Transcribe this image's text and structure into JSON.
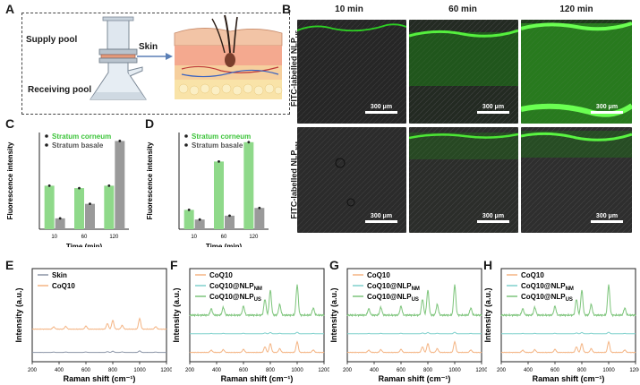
{
  "panels": {
    "A": {
      "label": "A",
      "supply": "Supply pool",
      "receiving": "Receiving pool",
      "skin": "Skin"
    },
    "B": {
      "label": "B",
      "times": [
        "10 min",
        "60 min",
        "120 min"
      ],
      "rows": [
        {
          "label_main": "FITC-labelled NLP",
          "label_sub": "US"
        },
        {
          "label_main": "FITC-labelled NLP",
          "label_sub": "NM"
        }
      ],
      "scalebar": "300 μm",
      "colors": {
        "fitc": "#3ddc2a",
        "tissue": "#2a2a2a"
      }
    }
  },
  "chart_data": [
    {
      "panel": "C",
      "type": "bar",
      "categories": [
        "10",
        "60",
        "120"
      ],
      "xlabel": "Time (min)",
      "ylabel": "Fluorescence intensity",
      "series": [
        {
          "name": "Stratum corneum",
          "values": [
            36,
            34,
            36
          ],
          "color": "#8fd98a"
        },
        {
          "name": "Stratum basale",
          "values": [
            9,
            21,
            73
          ],
          "color": "#9a9a9a"
        }
      ],
      "ylim": [
        0,
        80
      ]
    },
    {
      "panel": "D",
      "type": "bar",
      "categories": [
        "10",
        "60",
        "120"
      ],
      "xlabel": "Time (min)",
      "ylabel": "Fluorescence intensity",
      "series": [
        {
          "name": "Stratum corneum",
          "values": [
            10,
            35,
            45
          ],
          "color": "#8fd98a"
        },
        {
          "name": "Stratum basale",
          "values": [
            5,
            7,
            11
          ],
          "color": "#9a9a9a"
        }
      ],
      "ylim": [
        0,
        50
      ]
    },
    {
      "panel": "E",
      "type": "line",
      "xlabel": "Raman shift (cm⁻¹)",
      "ylabel": "Intensity (a.u.)",
      "xlim": [
        200,
        1200
      ],
      "xticks": [
        "200",
        "400",
        "600",
        "800",
        "1000",
        "1200"
      ],
      "series": [
        {
          "name": "Skin",
          "color": "#8a94a6",
          "offset": 0.1
        },
        {
          "name": "CoQ10",
          "color": "#f4b483",
          "offset": 0.35
        }
      ]
    },
    {
      "panel": "F",
      "type": "line",
      "xlabel": "Raman shift (cm⁻¹)",
      "ylabel": "Intensity (a.u.)",
      "xlim": [
        200,
        1200
      ],
      "xticks": [
        "200",
        "400",
        "600",
        "800",
        "1000",
        "1200"
      ],
      "series": [
        {
          "name": "CoQ10",
          "sub": "",
          "color": "#f4b483",
          "offset": 0.1
        },
        {
          "name": "CoQ10@NLP",
          "sub": "NM",
          "color": "#7fd0cc",
          "offset": 0.3
        },
        {
          "name": "CoQ10@NLP",
          "sub": "US",
          "color": "#7cc47a",
          "offset": 0.5
        }
      ]
    },
    {
      "panel": "G",
      "type": "line",
      "xlabel": "Raman shift (cm⁻¹)",
      "ylabel": "Intensity (a.u.)",
      "xlim": [
        200,
        1200
      ],
      "xticks": [
        "200",
        "400",
        "600",
        "800",
        "1000",
        "1200"
      ],
      "series": [
        {
          "name": "CoQ10",
          "sub": "",
          "color": "#f4b483",
          "offset": 0.1
        },
        {
          "name": "CoQ10@NLP",
          "sub": "NM",
          "color": "#7fd0cc",
          "offset": 0.3
        },
        {
          "name": "CoQ10@NLP",
          "sub": "US",
          "color": "#7cc47a",
          "offset": 0.5
        }
      ]
    },
    {
      "panel": "H",
      "type": "line",
      "xlabel": "Raman shift (cm⁻¹)",
      "ylabel": "Intensity (a.u.)",
      "xlim": [
        200,
        1200
      ],
      "xticks": [
        "200",
        "400",
        "600",
        "800",
        "1000",
        "1200"
      ],
      "series": [
        {
          "name": "CoQ10",
          "sub": "",
          "color": "#f4b483",
          "offset": 0.1
        },
        {
          "name": "CoQ10@NLP",
          "sub": "NM",
          "color": "#7fd0cc",
          "offset": 0.3
        },
        {
          "name": "CoQ10@NLP",
          "sub": "US",
          "color": "#7cc47a",
          "offset": 0.5
        }
      ]
    }
  ]
}
